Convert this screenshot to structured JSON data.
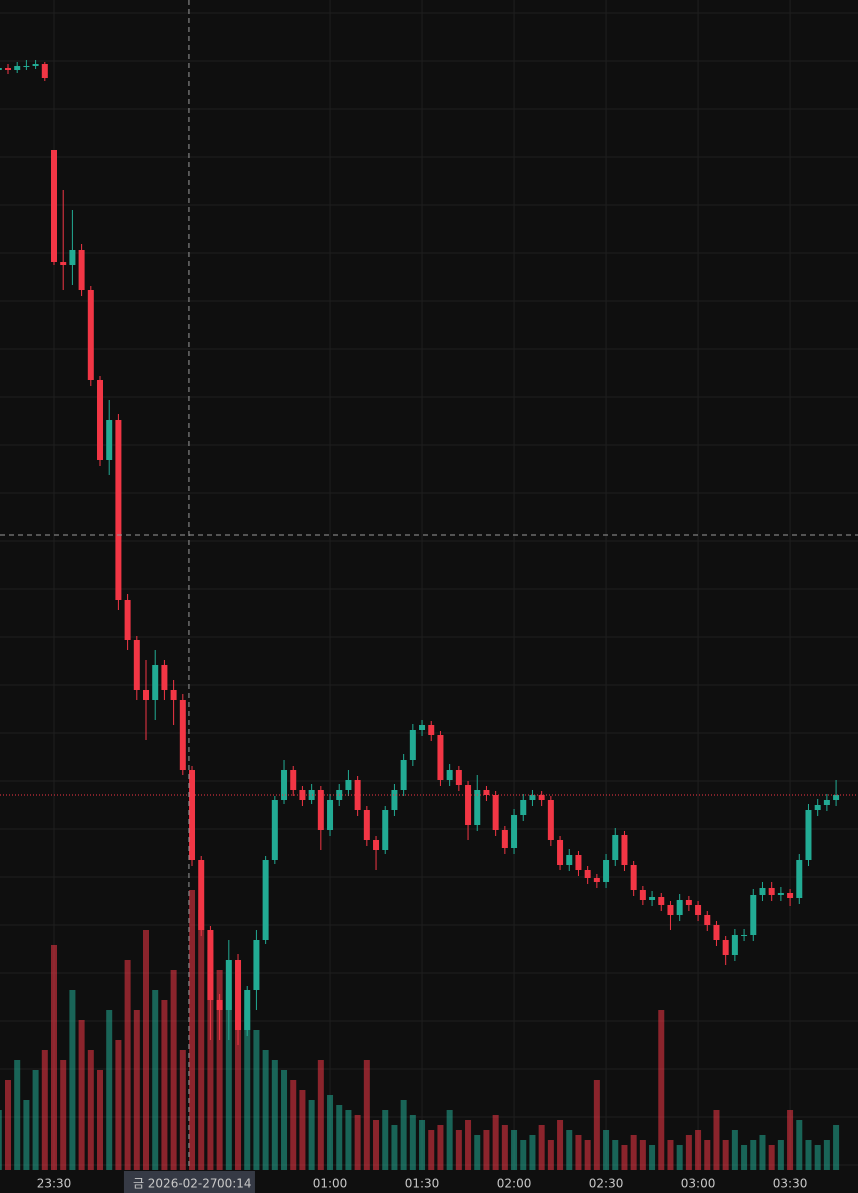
{
  "chart_data": {
    "type": "candlestick",
    "x": [
      "23:12",
      "23:15",
      "23:18",
      "23:21",
      "23:24",
      "23:27",
      "23:30",
      "23:33",
      "23:36",
      "23:39",
      "23:42",
      "23:45",
      "23:48",
      "23:51",
      "23:54",
      "23:57",
      "00:00",
      "00:03",
      "00:06",
      "00:09",
      "00:12",
      "00:15",
      "00:18",
      "00:21",
      "00:24",
      "00:27",
      "00:30",
      "00:33",
      "00:36",
      "00:39",
      "00:42",
      "00:45",
      "00:48",
      "00:51",
      "00:54",
      "00:57",
      "01:00",
      "01:03",
      "01:06",
      "01:09",
      "01:12",
      "01:15",
      "01:18",
      "01:21",
      "01:24",
      "01:27",
      "01:30",
      "01:33",
      "01:36",
      "01:39",
      "01:42",
      "01:45",
      "01:48",
      "01:51",
      "01:54",
      "01:57",
      "02:00",
      "02:03",
      "02:06",
      "02:09",
      "02:12",
      "02:15",
      "02:18",
      "02:21",
      "02:24",
      "02:27",
      "02:30",
      "02:33",
      "02:36",
      "02:39",
      "02:42",
      "02:45",
      "02:48",
      "02:51",
      "02:54",
      "02:57",
      "03:00",
      "03:03",
      "03:06",
      "03:09",
      "03:12",
      "03:15",
      "03:18",
      "03:21",
      "03:24",
      "03:27",
      "03:30",
      "03:33",
      "03:36",
      "03:39",
      "03:42",
      "03:45"
    ],
    "open": [
      1100,
      1102,
      1100,
      1104,
      1104,
      1106,
      1020,
      908,
      905,
      920,
      880,
      790,
      710,
      750,
      570,
      530,
      480,
      470,
      505,
      480,
      470,
      400,
      310,
      240,
      170,
      160,
      210,
      140,
      180,
      230,
      310,
      370,
      400,
      380,
      370,
      380,
      340,
      370,
      380,
      390,
      360,
      330,
      320,
      360,
      380,
      410,
      440,
      445,
      435,
      390,
      400,
      385,
      345,
      380,
      375,
      340,
      322,
      355,
      370,
      375,
      370,
      330,
      305,
      315,
      300,
      292,
      288,
      310,
      335,
      305,
      280,
      270,
      273,
      265,
      255,
      270,
      265,
      255,
      245,
      230,
      215,
      235,
      235,
      275,
      282,
      275,
      277,
      272,
      310,
      360,
      365,
      370
    ],
    "high": [
      1108,
      1106,
      1108,
      1110,
      1110,
      1108,
      1020,
      980,
      960,
      926,
      884,
      794,
      770,
      756,
      576,
      534,
      510,
      520,
      510,
      490,
      476,
      404,
      314,
      244,
      176,
      230,
      216,
      184,
      240,
      314,
      374,
      410,
      404,
      384,
      386,
      384,
      376,
      386,
      400,
      394,
      364,
      334,
      364,
      386,
      416,
      446,
      450,
      449,
      439,
      406,
      404,
      389,
      395,
      384,
      379,
      344,
      361,
      376,
      380,
      379,
      374,
      334,
      321,
      319,
      304,
      296,
      316,
      342,
      339,
      309,
      284,
      279,
      277,
      269,
      276,
      274,
      269,
      259,
      249,
      234,
      241,
      241,
      281,
      288,
      288,
      283,
      281,
      316,
      366,
      371,
      376,
      390
    ],
    "low": [
      1095,
      1096,
      1097,
      1100,
      1101,
      1089,
      905,
      880,
      885,
      874,
      784,
      704,
      695,
      560,
      520,
      470,
      430,
      450,
      470,
      445,
      395,
      304,
      234,
      130,
      130,
      130,
      125,
      134,
      160,
      226,
      306,
      366,
      374,
      364,
      366,
      320,
      334,
      364,
      374,
      354,
      324,
      300,
      316,
      354,
      374,
      404,
      434,
      429,
      384,
      384,
      379,
      330,
      339,
      369,
      334,
      316,
      316,
      349,
      364,
      364,
      324,
      300,
      299,
      294,
      286,
      282,
      282,
      304,
      299,
      274,
      265,
      264,
      259,
      240,
      249,
      259,
      249,
      239,
      224,
      205,
      209,
      229,
      229,
      269,
      269,
      269,
      264,
      266,
      304,
      354,
      359,
      364
    ],
    "close": [
      1102,
      1100,
      1104,
      1104,
      1106,
      1092,
      908,
      905,
      920,
      880,
      790,
      710,
      750,
      570,
      530,
      480,
      470,
      505,
      480,
      470,
      400,
      310,
      240,
      170,
      160,
      210,
      140,
      180,
      230,
      310,
      370,
      400,
      380,
      370,
      380,
      340,
      370,
      380,
      390,
      360,
      330,
      320,
      360,
      380,
      410,
      440,
      445,
      435,
      390,
      400,
      385,
      345,
      380,
      375,
      340,
      322,
      355,
      370,
      375,
      370,
      330,
      305,
      315,
      300,
      292,
      288,
      310,
      335,
      305,
      280,
      270,
      273,
      265,
      255,
      270,
      265,
      255,
      245,
      230,
      215,
      235,
      235,
      275,
      282,
      275,
      277,
      272,
      310,
      360,
      365,
      370,
      375
    ],
    "volume": [
      60,
      90,
      110,
      70,
      100,
      120,
      225,
      110,
      180,
      150,
      120,
      100,
      160,
      130,
      210,
      160,
      240,
      180,
      170,
      200,
      120,
      280,
      260,
      220,
      200,
      180,
      150,
      160,
      140,
      120,
      110,
      100,
      90,
      80,
      70,
      110,
      75,
      65,
      60,
      55,
      110,
      50,
      60,
      45,
      70,
      55,
      50,
      40,
      45,
      60,
      40,
      50,
      35,
      40,
      55,
      45,
      40,
      30,
      35,
      45,
      30,
      50,
      40,
      35,
      30,
      90,
      40,
      30,
      25,
      35,
      30,
      25,
      160,
      30,
      25,
      35,
      40,
      30,
      60,
      30,
      40,
      25,
      30,
      35,
      25,
      30,
      60,
      50,
      30,
      25,
      30,
      45
    ],
    "ylim": [
      0,
      1170
    ],
    "xticks": [
      "23:30",
      "01:00",
      "01:30",
      "02:00",
      "02:30",
      "03:00",
      "03:30"
    ],
    "up_color": "#22ab94",
    "down_color": "#f23645",
    "grid": true,
    "crosshair_date": "금 2026-02-27",
    "crosshair_time": "00:14",
    "crosshair_price": 635
  }
}
